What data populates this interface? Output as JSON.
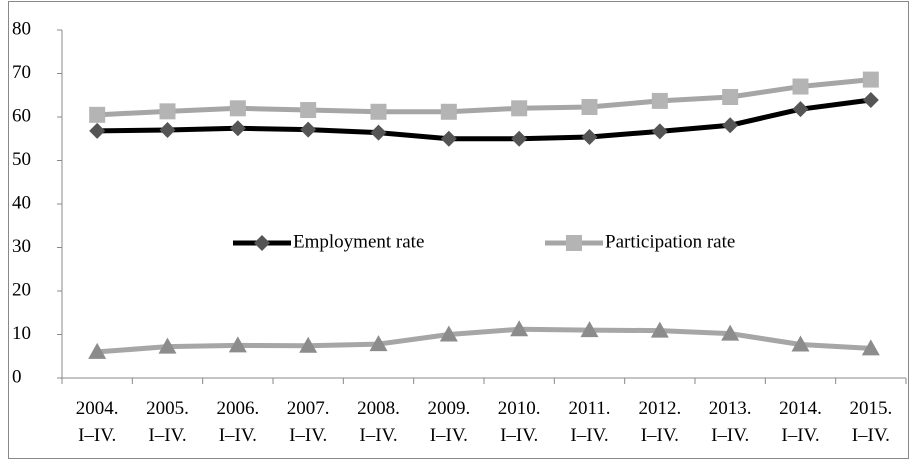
{
  "chart_data": {
    "type": "line",
    "categories": [
      "2004. I–IV.",
      "2005. I–IV.",
      "2006. I–IV.",
      "2007. I–IV.",
      "2008. I–IV.",
      "2009. I–IV.",
      "2010. I–IV.",
      "2011. I–IV.",
      "2012. I–IV.",
      "2013. I–IV.",
      "2014. I–IV.",
      "2015. I–IV."
    ],
    "series": [
      {
        "name": "Employment rate",
        "color": "#000000",
        "marker_color": "#555555",
        "marker": "diamond",
        "values": [
          56.8,
          57.0,
          57.4,
          57.1,
          56.4,
          55.0,
          55.0,
          55.4,
          56.7,
          58.1,
          61.8,
          63.9
        ]
      },
      {
        "name": "Participation rate",
        "color": "#a6a6a6",
        "marker_color": "#b4b4b4",
        "marker": "square",
        "values": [
          60.5,
          61.3,
          62.0,
          61.6,
          61.2,
          61.2,
          62.0,
          62.3,
          63.7,
          64.6,
          67.0,
          68.6
        ]
      },
      {
        "color": "#a6a6a6",
        "marker_color": "#8c8c8c",
        "marker": "triangle",
        "values": [
          6.0,
          7.2,
          7.5,
          7.4,
          7.8,
          10.0,
          11.2,
          11.0,
          10.9,
          10.2,
          7.7,
          6.8
        ]
      }
    ],
    "ylim": [
      0,
      80
    ],
    "yticks": [
      0,
      10,
      20,
      30,
      40,
      50,
      60,
      70,
      80
    ],
    "grid": false
  }
}
